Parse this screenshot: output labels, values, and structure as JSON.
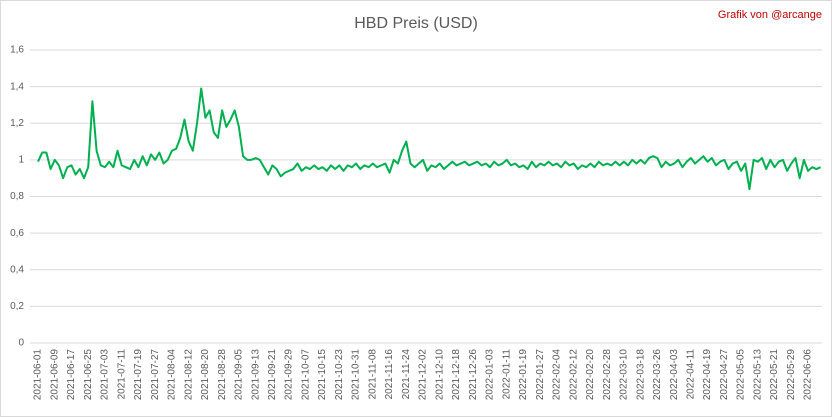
{
  "chart_data": {
    "type": "line",
    "title": "HBD Preis (USD)",
    "annotation": "Grafik von @arcange",
    "categories": [
      "2021-06-01",
      null,
      null,
      null,
      "2021-06-09",
      null,
      null,
      null,
      "2021-06-17",
      null,
      null,
      null,
      "2021-06-25",
      null,
      null,
      null,
      "2021-07-03",
      null,
      null,
      null,
      "2021-07-11",
      null,
      null,
      null,
      "2021-07-19",
      null,
      null,
      null,
      "2021-07-27",
      null,
      null,
      null,
      "2021-08-04",
      null,
      null,
      null,
      "2021-08-12",
      null,
      null,
      null,
      "2021-08-20",
      null,
      null,
      null,
      "2021-08-28",
      null,
      null,
      null,
      "2021-09-05",
      null,
      null,
      null,
      "2021-09-13",
      null,
      null,
      null,
      "2021-09-21",
      null,
      null,
      null,
      "2021-09-29",
      null,
      null,
      null,
      "2021-10-07",
      null,
      null,
      null,
      "2021-10-15",
      null,
      null,
      null,
      "2021-10-23",
      null,
      null,
      null,
      "2021-10-31",
      null,
      null,
      null,
      "2021-11-08",
      null,
      null,
      null,
      "2021-11-16",
      null,
      null,
      null,
      "2021-11-24",
      null,
      null,
      null,
      "2021-12-02",
      null,
      null,
      null,
      "2021-12-10",
      null,
      null,
      null,
      "2021-12-18",
      null,
      null,
      null,
      "2021-12-26",
      null,
      null,
      null,
      "2022-01-03",
      null,
      null,
      null,
      "2022-01-11",
      null,
      null,
      null,
      "2022-01-19",
      null,
      null,
      null,
      "2022-01-27",
      null,
      null,
      null,
      "2022-02-04",
      null,
      null,
      null,
      "2022-02-12",
      null,
      null,
      null,
      "2022-02-20",
      null,
      null,
      null,
      "2022-02-28",
      null,
      null,
      null,
      "2022-03-10",
      null,
      null,
      null,
      "2022-03-18",
      null,
      null,
      null,
      "2022-03-26",
      null,
      null,
      null,
      "2022-04-03",
      null,
      null,
      null,
      "2022-04-11",
      null,
      null,
      null,
      "2022-04-19",
      null,
      null,
      null,
      "2022-04-27",
      null,
      null,
      null,
      "2022-05-05",
      null,
      null,
      null,
      "2022-05-13",
      null,
      null,
      null,
      "2022-05-21",
      null,
      null,
      null,
      "2022-05-29",
      null,
      null,
      null,
      "2022-06-06",
      null,
      null,
      null
    ],
    "series": [
      {
        "name": "HBD",
        "color": "#00b050",
        "values": [
          0.99,
          1.04,
          1.04,
          0.95,
          1.0,
          0.97,
          0.9,
          0.96,
          0.97,
          0.92,
          0.95,
          0.9,
          0.96,
          1.32,
          1.05,
          0.97,
          0.96,
          0.99,
          0.96,
          1.05,
          0.97,
          0.96,
          0.95,
          1.0,
          0.96,
          1.02,
          0.97,
          1.03,
          1.0,
          1.04,
          0.98,
          1.0,
          1.05,
          1.06,
          1.12,
          1.22,
          1.1,
          1.05,
          1.2,
          1.39,
          1.23,
          1.27,
          1.15,
          1.12,
          1.27,
          1.18,
          1.22,
          1.27,
          1.18,
          1.02,
          1.0,
          1.0,
          1.01,
          1.0,
          0.96,
          0.92,
          0.97,
          0.95,
          0.91,
          0.93,
          0.94,
          0.95,
          0.98,
          0.94,
          0.96,
          0.95,
          0.97,
          0.95,
          0.96,
          0.94,
          0.97,
          0.95,
          0.97,
          0.94,
          0.97,
          0.96,
          0.98,
          0.95,
          0.97,
          0.96,
          0.98,
          0.96,
          0.97,
          0.98,
          0.93,
          1.0,
          0.98,
          1.05,
          1.1,
          0.98,
          0.96,
          0.98,
          1.0,
          0.94,
          0.97,
          0.96,
          0.98,
          0.95,
          0.97,
          0.99,
          0.97,
          0.98,
          0.99,
          0.97,
          0.98,
          0.99,
          0.97,
          0.98,
          0.96,
          0.99,
          0.97,
          0.98,
          1.0,
          0.97,
          0.98,
          0.96,
          0.97,
          0.95,
          0.99,
          0.96,
          0.98,
          0.97,
          0.99,
          0.97,
          0.98,
          0.96,
          0.99,
          0.97,
          0.98,
          0.95,
          0.97,
          0.96,
          0.98,
          0.96,
          0.99,
          0.97,
          0.98,
          0.97,
          0.99,
          0.97,
          0.99,
          0.97,
          1.0,
          0.98,
          1.0,
          0.98,
          1.01,
          1.02,
          1.01,
          0.96,
          0.99,
          0.97,
          0.98,
          1.0,
          0.96,
          0.99,
          1.01,
          0.98,
          1.0,
          1.02,
          0.99,
          1.01,
          0.97,
          0.99,
          1.0,
          0.95,
          0.98,
          0.99,
          0.94,
          0.98,
          0.84,
          1.0,
          0.99,
          1.01,
          0.95,
          1.0,
          0.96,
          0.99,
          1.0,
          0.94,
          0.98,
          1.01,
          0.9,
          1.0,
          0.94,
          0.96,
          0.95,
          0.96
        ]
      }
    ],
    "ylim": [
      0,
      1.6
    ],
    "yticks": [
      0,
      {
        "value": 0.2,
        "label": "0,2"
      },
      {
        "value": 0.4,
        "label": "0,4"
      },
      {
        "value": 0.6,
        "label": "0,6"
      },
      {
        "value": 0.8,
        "label": "0,8"
      },
      1,
      {
        "value": 1.2,
        "label": "1,2"
      },
      {
        "value": 1.4,
        "label": "1,4"
      },
      {
        "value": 1.6,
        "label": "1,6"
      }
    ],
    "grid": true
  }
}
